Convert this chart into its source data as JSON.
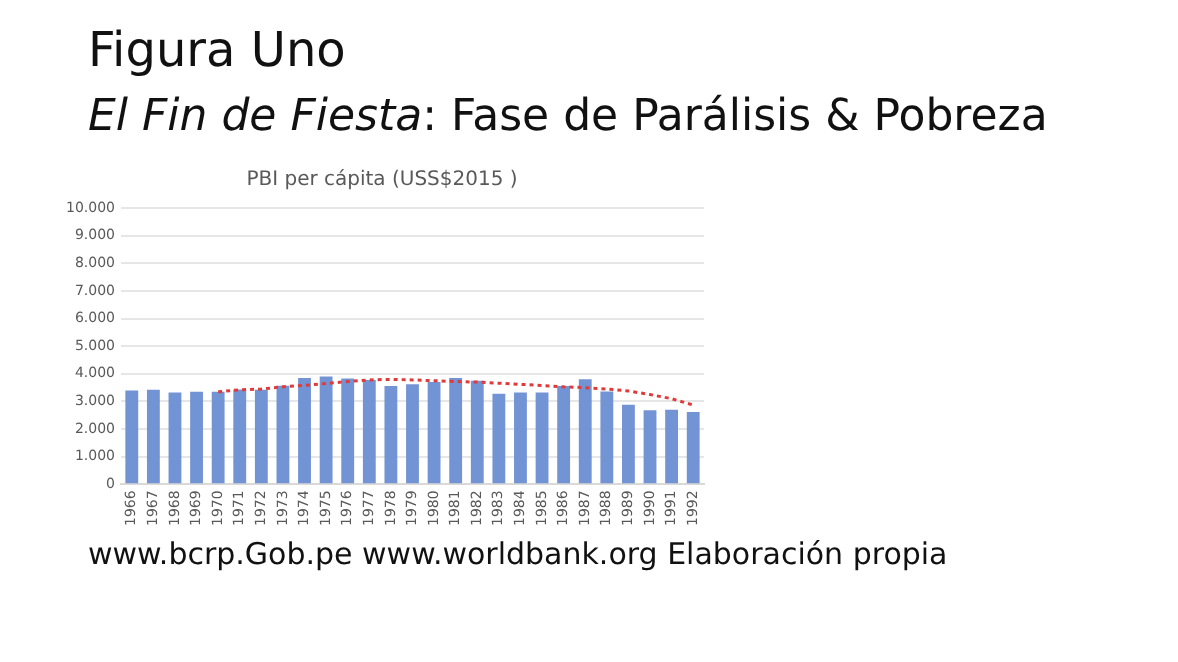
{
  "chart_data": {
    "type": "bar",
    "title": "Figura Uno",
    "subtitle": "El Fin de Fiesta: Fase de Parálisis & Pobreza",
    "categories": [
      "1966",
      "1967",
      "1968",
      "1969",
      "1970",
      "1971",
      "1972",
      "1973",
      "1974",
      "1975",
      "1976",
      "1977",
      "1978",
      "1979",
      "1980",
      "1981",
      "1982",
      "1983",
      "1984",
      "1985",
      "1986",
      "1987",
      "1988",
      "1989",
      "1990",
      "1991",
      "1992"
    ],
    "series": [
      {
        "name": "PBI per cápita (USS$2015 )",
        "color": "#7394d4",
        "values": [
          3400,
          3420,
          3320,
          3350,
          3350,
          3430,
          3420,
          3570,
          3850,
          3900,
          3830,
          3780,
          3560,
          3620,
          3700,
          3850,
          3750,
          3280,
          3320,
          3320,
          3560,
          3800,
          3360,
          2880,
          2680,
          2700,
          2620
        ]
      },
      {
        "type": "line",
        "color": "#e03a3a",
        "line_style": "dotted",
        "marker": "none",
        "values": [
          null,
          null,
          null,
          null,
          3350,
          3420,
          3450,
          3530,
          3580,
          3650,
          3720,
          3780,
          3800,
          3780,
          3750,
          3720,
          3700,
          3660,
          3620,
          3580,
          3530,
          3500,
          3450,
          3380,
          3250,
          3100,
          2870
        ]
      }
    ],
    "ylim": [
      0,
      10000
    ],
    "yticks": [
      0,
      {
        "value": 1000,
        "label": "1.000"
      },
      {
        "value": 2000,
        "label": "2.000"
      },
      {
        "value": 3000,
        "label": "3.000"
      },
      {
        "value": 4000,
        "label": "4.000"
      },
      {
        "value": 5000,
        "label": "5.000"
      },
      {
        "value": 6000,
        "label": "6.000"
      },
      {
        "value": 7000,
        "label": "7.000"
      },
      {
        "value": 8000,
        "label": "8.000"
      },
      {
        "value": 9000,
        "label": "9.000"
      },
      {
        "value": 10000,
        "label": "10.000"
      }
    ],
    "grid": "y",
    "legend": false,
    "annotations": [
      "www.bcrp.Gob.pe www.worldbank.org Elaboración propia"
    ]
  }
}
